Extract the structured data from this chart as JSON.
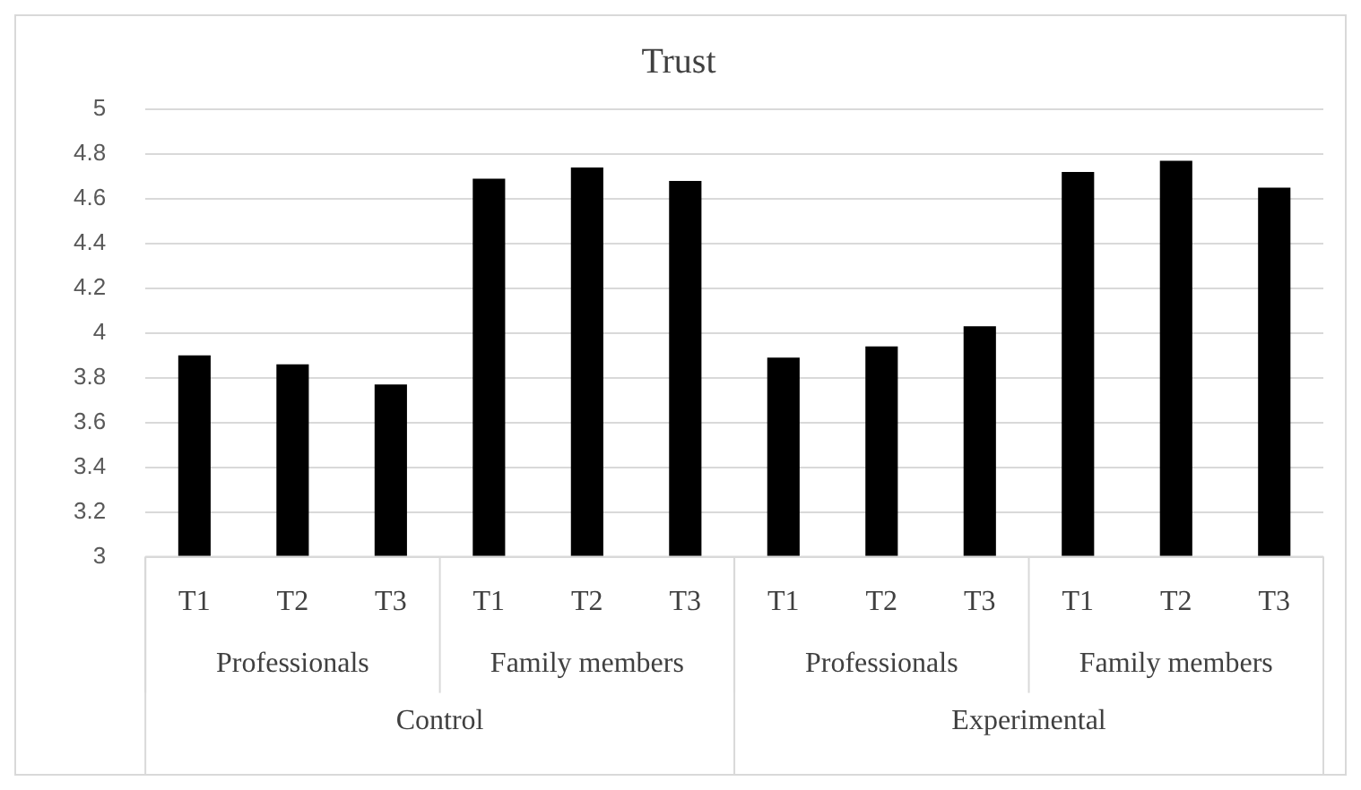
{
  "chart_data": {
    "type": "bar",
    "title": "Trust",
    "categories": [
      "T1",
      "T2",
      "T3",
      "T1",
      "T2",
      "T3",
      "T1",
      "T2",
      "T3",
      "T1",
      "T2",
      "T3"
    ],
    "values": [
      3.9,
      3.86,
      3.77,
      4.69,
      4.74,
      4.68,
      3.89,
      3.94,
      4.03,
      4.72,
      4.77,
      4.65
    ],
    "color": "#000000",
    "ylim": [
      3,
      5
    ],
    "yticks": [
      3,
      3.2,
      3.4,
      3.6,
      3.8,
      4,
      4.2,
      4.4,
      4.6,
      4.8,
      5
    ],
    "grid": "y",
    "annotations": [
      "Professionals",
      "Family members",
      "Professionals",
      "Family members",
      "Control",
      "Experimental"
    ]
  }
}
